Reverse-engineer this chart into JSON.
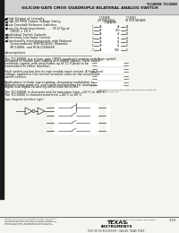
{
  "page_bg": "#f5f5f0",
  "title_line1": "TLC4066B, TLC4066I",
  "title_line2": "SILICON-GATE CMOS QUADRUPLE BILATERAL ANALOG SWITCH",
  "left_bar_color": "#1a1a1a",
  "text_color": "#111111",
  "gray_text": "#444444",
  "title_bg": "#d0d0d0",
  "section_line_color": "#555555",
  "bullet_features": [
    "High Degree of Linearity",
    "High 8V RMS Output Voltage Swing",
    "Low Crosstalk Between Switches",
    "Low-On-State Impedance . . . 35 Ω Typ at\n      VDDD = 10 V",
    "Individual Switch Controls",
    "Extremely Low Input Current",
    "Functionally Interchangeable with National\n      Semiconductor MM74C4066, Motorola\n      MC14066, and RCA CD4066B"
  ],
  "desc_title": "description",
  "desc_paragraphs": [
    "The TLC4066B is a silicon-gate CMOS quadruple analog switch designed to handle both analog and digital signals. Each switch transmits signals with amplitudes up to 12 V peak to be transmitted in either direction.",
    "Each switch section has its own enable input control. A high-level voltage applied to this control terminal turns on the associated switch section.",
    "Applications include signal gating, streaming modulation in demodulation products, and signal multiplexing for analog-to-digital and digital-to-analog conversion functions.",
    "The TLC4066B is characterized for operation from −55°C to 125°C. The TLC4066I is characterized from −40°C to 85°C."
  ],
  "logic_diagram_label": "logic diagram (positive logic)",
  "table_header1": "TLC4066B",
  "table_header2": "TLC4066I",
  "table_subhdr1": "J OR N PACKAGE",
  "table_subhdr2": "FN OR N PACKAGE",
  "table_subhdr3": "(TOP VIEW)",
  "pin_labels_left": [
    "1A",
    "1B",
    "2A",
    "2B",
    "3A",
    "3B",
    "4A"
  ],
  "pin_labels_right": [
    "4B",
    "VDD",
    "4E",
    "3E",
    "2E",
    "1E",
    "GND"
  ],
  "pin_nums_left": [
    1,
    2,
    3,
    4,
    5,
    6,
    7
  ],
  "pin_nums_right": [
    14,
    13,
    12,
    11,
    10,
    9,
    8
  ],
  "logic_sym_label": "logic symbol",
  "footer_left_text": "PRODUCTION DATA documents contain information\ncurrent as of publication date. Products conform\nto specifications per the terms of Texas Instruments\nstandard warranty. Production processing does\nnot necessarily include testing of all parameters.",
  "footer_center": "POST OFFICE BOX 655303 • DALLAS, TEXAS 75265",
  "footer_right": "7-23",
  "ti_text": "TEXAS\nINSTRUMENTS",
  "copyright": "Copyright © 1988 Texas Instruments Incorporated"
}
